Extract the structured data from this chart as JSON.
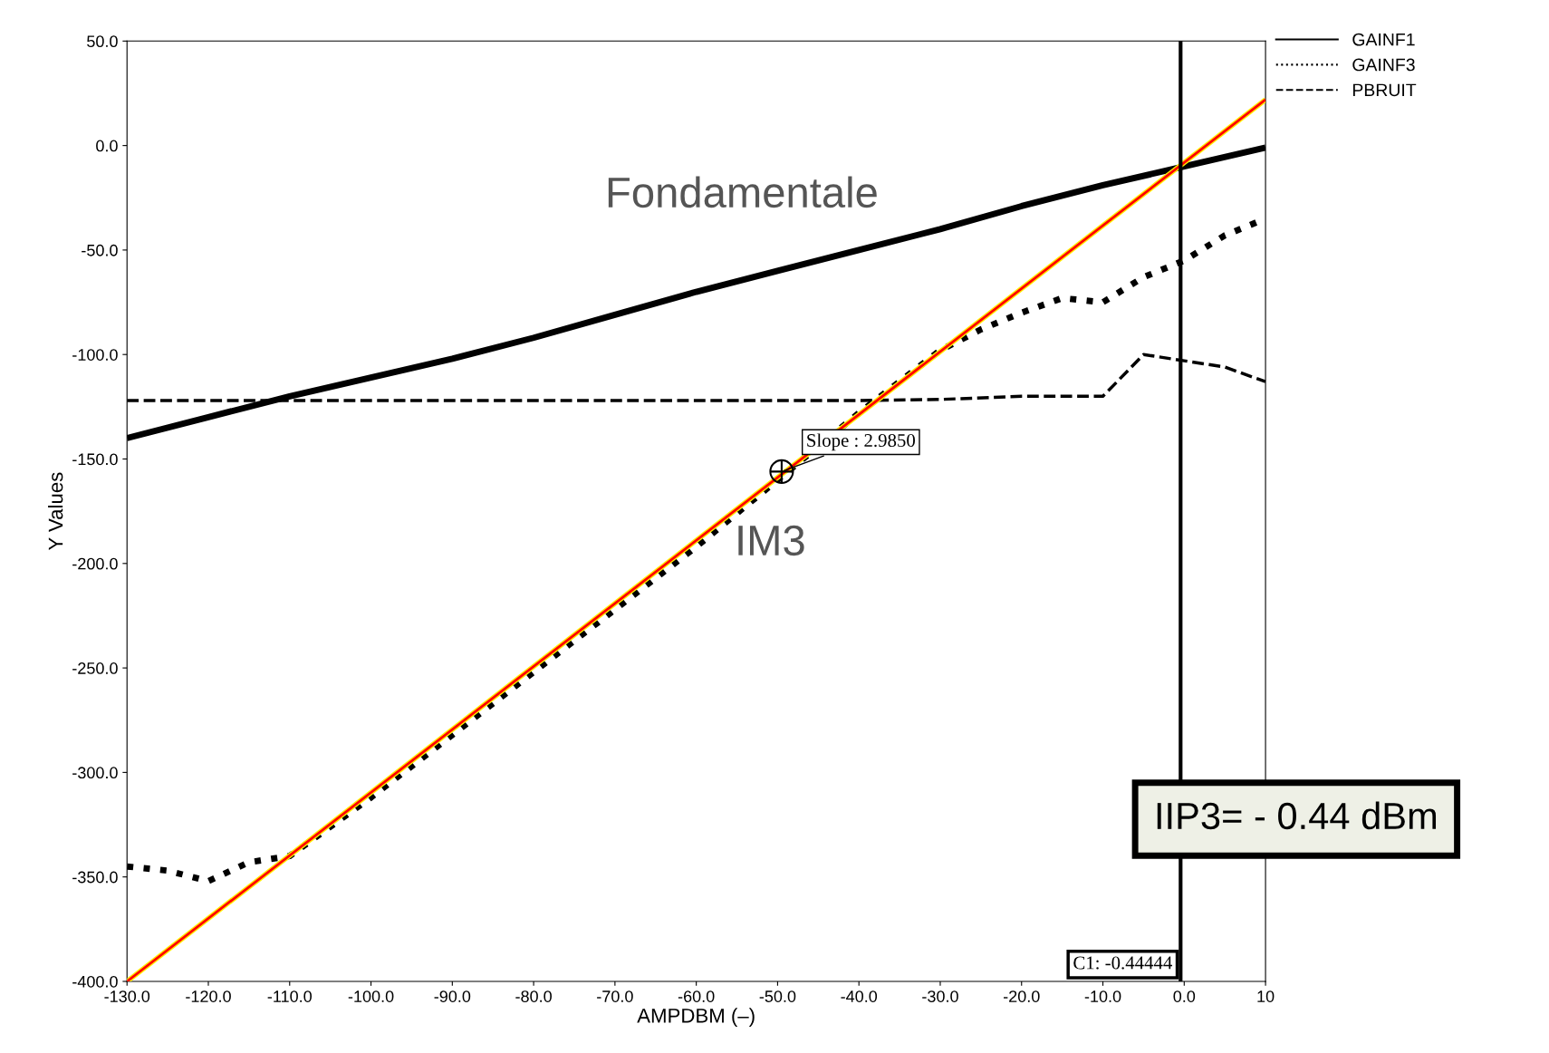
{
  "chart_data": {
    "type": "line",
    "xlabel": "AMPDBM (–)",
    "ylabel": "Y Values",
    "xlim": [
      -130,
      10
    ],
    "ylim": [
      -400,
      50
    ],
    "xticks": [
      {
        "value": -130,
        "label": "-130.0"
      },
      {
        "value": -120,
        "label": "-120.0"
      },
      {
        "value": -110,
        "label": "-110.0"
      },
      {
        "value": -100,
        "label": "-100.0"
      },
      {
        "value": -90,
        "label": "-90.0"
      },
      {
        "value": -80,
        "label": "-80.0"
      },
      {
        "value": -70,
        "label": "-70.0"
      },
      {
        "value": -60,
        "label": "-60.0"
      },
      {
        "value": -50,
        "label": "-50.0"
      },
      {
        "value": -40,
        "label": "-40.0"
      },
      {
        "value": -30,
        "label": "-30.0"
      },
      {
        "value": -20,
        "label": "-20.0"
      },
      {
        "value": -10,
        "label": "-10.0"
      },
      {
        "value": 0,
        "label": "0.0"
      },
      {
        "value": 10,
        "label": "10"
      }
    ],
    "yticks": [
      {
        "value": -400,
        "label": "-400.0"
      },
      {
        "value": -350,
        "label": "-350.0"
      },
      {
        "value": -300,
        "label": "-300.0"
      },
      {
        "value": -250,
        "label": "-250.0"
      },
      {
        "value": -200,
        "label": "-200.0"
      },
      {
        "value": -150,
        "label": "-150.0"
      },
      {
        "value": -100,
        "label": "-100.0"
      },
      {
        "value": -50,
        "label": "-50.0"
      },
      {
        "value": 0,
        "label": "0.0"
      },
      {
        "value": 50,
        "label": "50.0"
      }
    ],
    "grid": false,
    "legend": "top right",
    "marker": "none",
    "series": [
      {
        "name": "GAINF1",
        "color": "#000000",
        "line_style": "solid",
        "x": [
          -130,
          -120,
          -110,
          -100,
          -90,
          -80,
          -70,
          -60,
          -50,
          -40,
          -30,
          -20,
          -10,
          0,
          10
        ],
        "values": [
          -140,
          -130,
          -120,
          -111,
          -102,
          -92,
          -81,
          -70,
          -60,
          -50,
          -40,
          -29,
          -19,
          -10,
          -1
        ]
      },
      {
        "name": "GAINF3",
        "color": "#000000",
        "line_style": "dotted",
        "x": [
          -130,
          -125,
          -120,
          -115,
          -110,
          -100,
          -90,
          -80,
          -70,
          -60,
          -50,
          -40,
          -30,
          -25,
          -20,
          -15,
          -10,
          -5,
          0,
          5,
          10
        ],
        "values": [
          -345,
          -347,
          -352,
          -343,
          -340,
          -312,
          -282,
          -252,
          -222,
          -192,
          -160,
          -128,
          -98,
          -88,
          -80,
          -73,
          -75,
          -63,
          -55,
          -43,
          -35
        ]
      },
      {
        "name": "PBRUIT",
        "color": "#000000",
        "line_style": "dashed",
        "x": [
          -130,
          -40,
          -30,
          -20,
          -10,
          -5,
          0,
          5,
          10
        ],
        "values": [
          -122,
          -122,
          -121.5,
          -120,
          -120,
          -100,
          -103,
          -106,
          -113
        ]
      },
      {
        "color": "#ff0000",
        "line_style": "solid",
        "x": [
          -130,
          10
        ],
        "values": [
          -400,
          22
        ]
      }
    ],
    "ref_lines": [
      {
        "axis": "x",
        "value": -0.44444,
        "label": "C1: -0.44444",
        "color": "#000000"
      }
    ],
    "annotations": [
      {
        "text": "Slope : 2.9850",
        "x": -49.5,
        "y": -156
      },
      "Fondamentale",
      "IM3",
      "IIP3= - 0.44 dBm"
    ]
  }
}
